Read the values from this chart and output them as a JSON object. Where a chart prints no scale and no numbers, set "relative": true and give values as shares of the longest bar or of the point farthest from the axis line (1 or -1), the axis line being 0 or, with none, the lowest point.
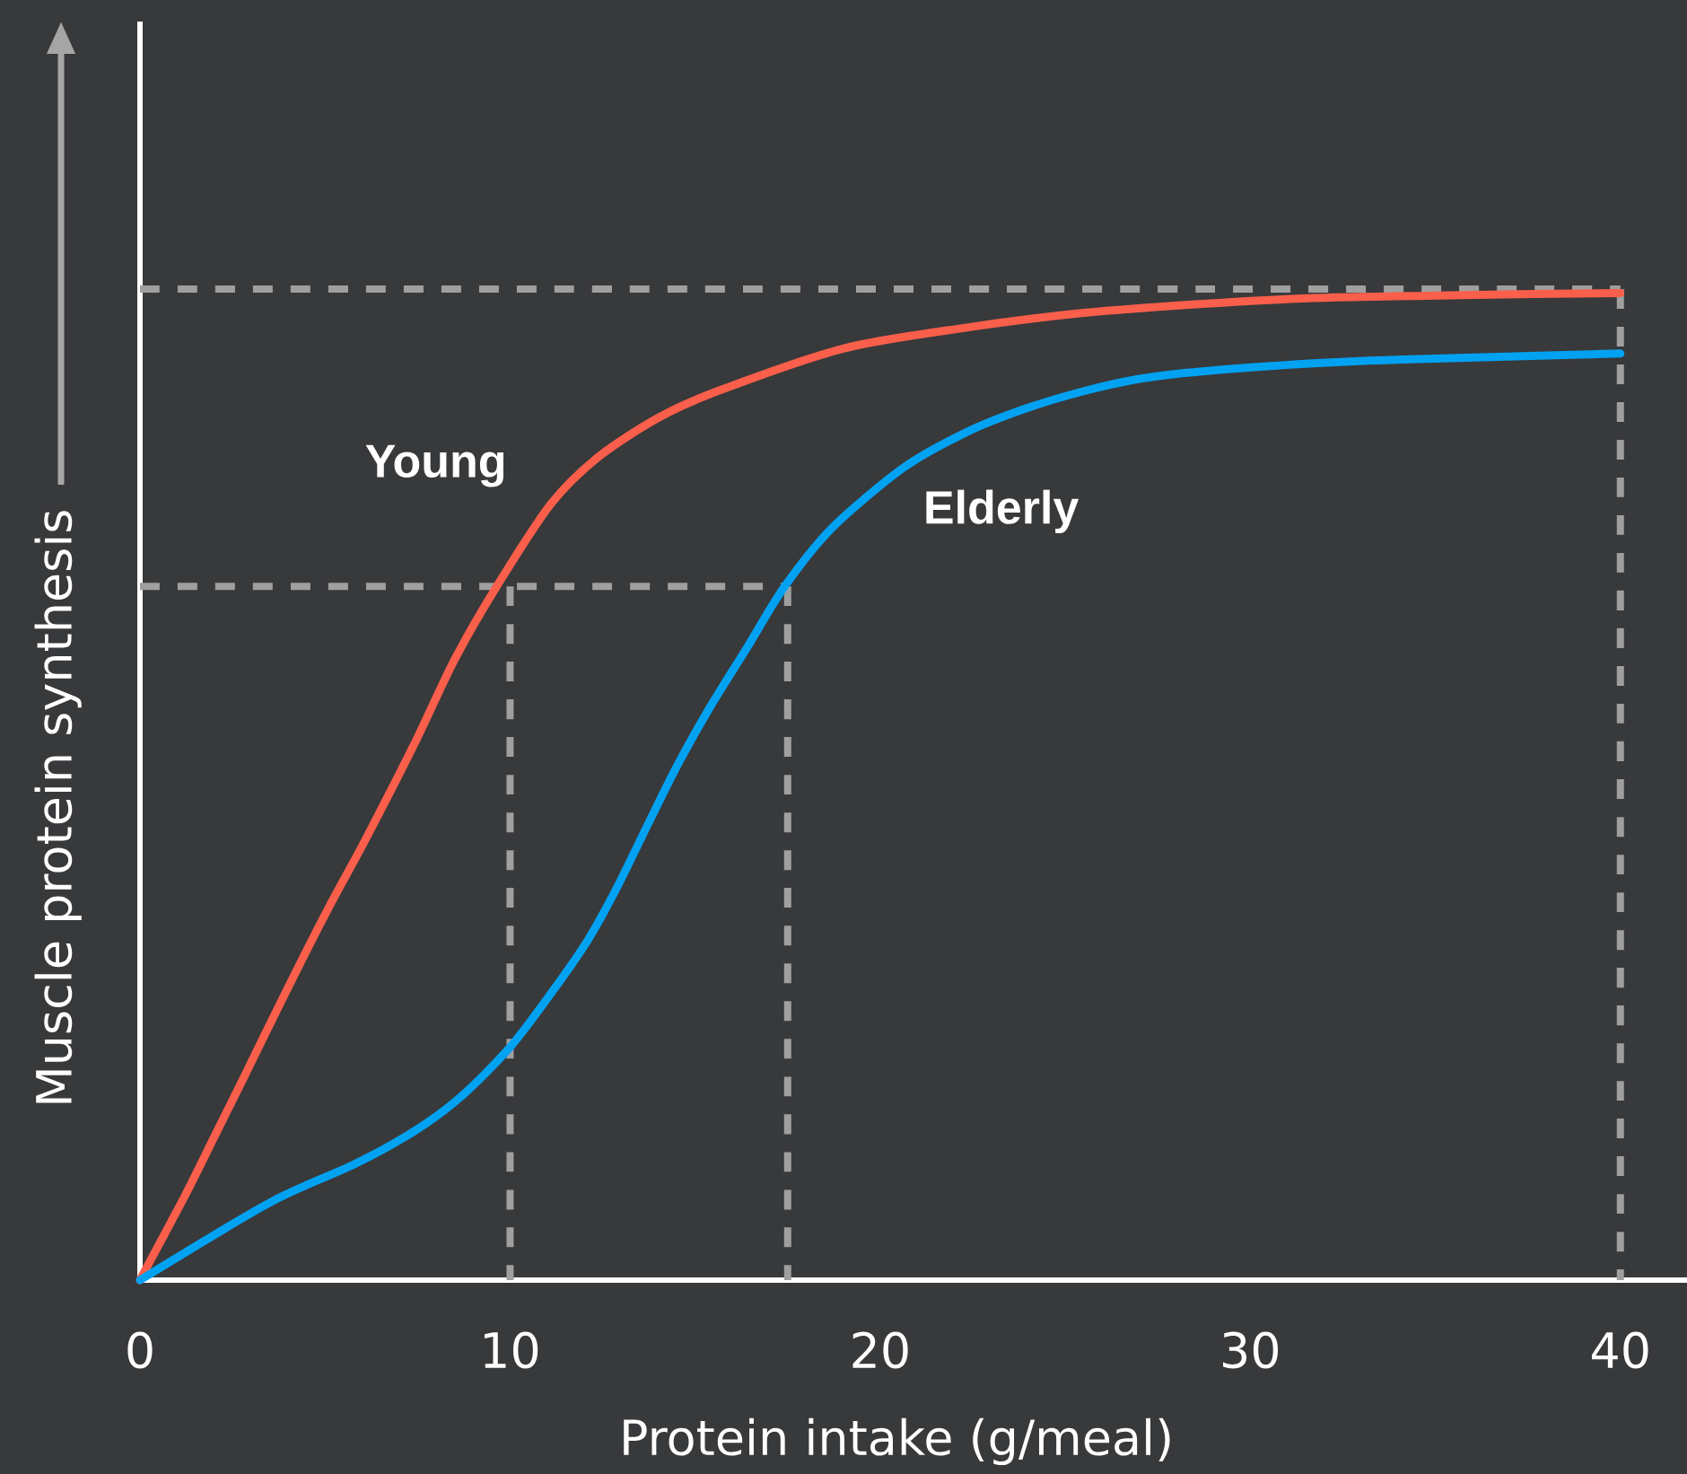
{
  "chart_data": {
    "type": "line",
    "relative": true,
    "xlabel": "Protein intake (g/meal)",
    "ylabel": "Muscle protein synthesis",
    "xlim": [
      0,
      41.8
    ],
    "xticks": [
      0,
      10,
      20,
      30,
      40
    ],
    "series": [
      {
        "color": "#9f9f9f",
        "line_style": "dashed",
        "x": [
          0,
          40
        ],
        "values": [
          1,
          1
        ]
      },
      {
        "color": "#9f9f9f",
        "line_style": "dashed",
        "x": [
          40,
          40
        ],
        "values": [
          1,
          0
        ]
      },
      {
        "color": "#9f9f9f",
        "line_style": "dashed",
        "x": [
          0,
          17.5
        ],
        "values": [
          0.7,
          0.7
        ]
      },
      {
        "color": "#9f9f9f",
        "line_style": "dashed",
        "x": [
          17.5,
          17.5
        ],
        "values": [
          0.7,
          0
        ]
      },
      {
        "color": "#9f9f9f",
        "line_style": "dashed",
        "x": [
          10,
          10
        ],
        "values": [
          0.7,
          0
        ]
      },
      {
        "name": "Young",
        "color": "#fa5f4b",
        "x": [
          0,
          1.2,
          2,
          2.8,
          3.6,
          4.4,
          5.2,
          6.1,
          7.4,
          8.5,
          9.64,
          11.1,
          12.4,
          14,
          15.6,
          19,
          22.3,
          25.5,
          28.7,
          31.7,
          35.7,
          40
        ],
        "values": [
          0,
          0.084,
          0.144,
          0.204,
          0.265,
          0.325,
          0.383,
          0.445,
          0.54,
          0.626,
          0.7,
          0.783,
          0.831,
          0.87,
          0.897,
          0.94,
          0.961,
          0.976,
          0.985,
          0.991,
          0.994,
          0.996
        ]
      },
      {
        "name": "Elderly",
        "color": "#02a2f2",
        "x": [
          0,
          3.5,
          5.8,
          7.4,
          8.7,
          10,
          11.1,
          12.1,
          12.9,
          13.7,
          14.5,
          15.4,
          16.4,
          17.4,
          18.7,
          20.6,
          22.3,
          23.9,
          25.5,
          27.1,
          28.7,
          31.7,
          34.1,
          40
        ],
        "values": [
          0,
          0.078,
          0.117,
          0.15,
          0.186,
          0.235,
          0.289,
          0.343,
          0.397,
          0.458,
          0.518,
          0.578,
          0.638,
          0.699,
          0.759,
          0.819,
          0.855,
          0.879,
          0.897,
          0.91,
          0.917,
          0.925,
          0.929,
          0.935
        ]
      }
    ]
  }
}
